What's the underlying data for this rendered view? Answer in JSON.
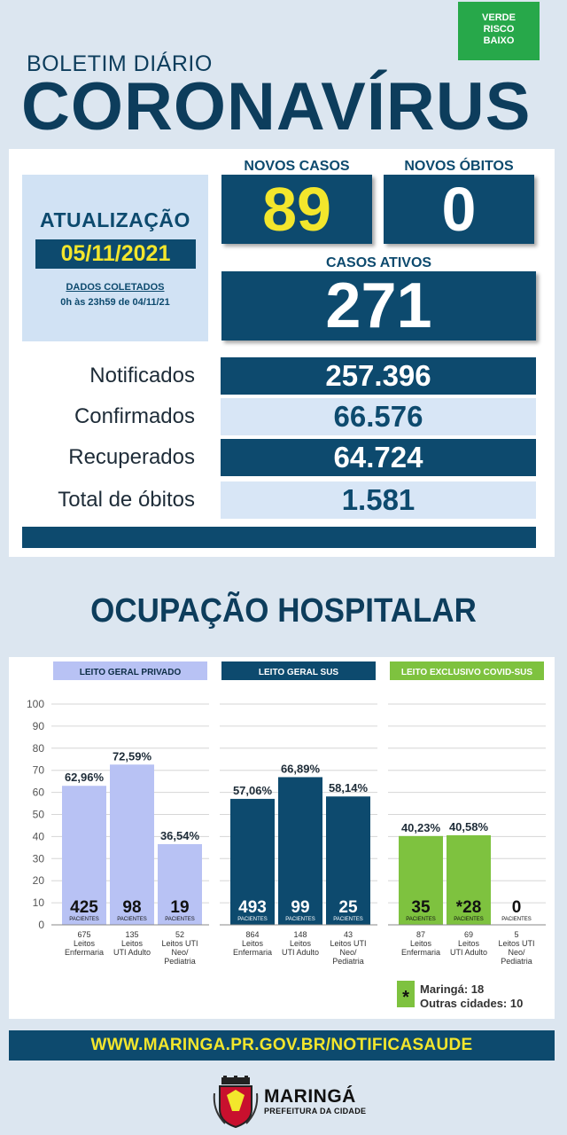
{
  "header": {
    "risk_badge": [
      "VERDE",
      "RISCO",
      "BAIXO"
    ],
    "subtitle": "BOLETIM DIÁRIO",
    "title": "CORONAVÍRUS"
  },
  "update": {
    "title": "ATUALIZAÇÃO",
    "date": "05/11/2021",
    "note_line1": "DADOS COLETADOS",
    "note_line2": "0h às 23h59 de 04/11/21"
  },
  "top_stats": {
    "new_cases_label": "NOVOS CASOS",
    "new_cases": "89",
    "new_deaths_label": "NOVOS ÓBITOS",
    "new_deaths": "0",
    "active_label": "CASOS ATIVOS",
    "active": "271"
  },
  "stats": [
    {
      "label": "Notificados",
      "value": "257.396"
    },
    {
      "label": "Confirmados",
      "value": "66.576"
    },
    {
      "label": "Recuperados",
      "value": "64.724"
    },
    {
      "label": "Total de óbitos",
      "value": "1.581"
    }
  ],
  "hospital_title": "OCUPAÇÃO HOSPITALAR",
  "colors": {
    "private": "#b8c2f4",
    "sus": "#0d4a6e",
    "covid": "#7ec23f",
    "accent_yellow": "#f3e62c"
  },
  "chart_data": {
    "type": "bar",
    "ylim": [
      0,
      100
    ],
    "yticks": [
      "0",
      "10",
      "20",
      "30",
      "40",
      "50",
      "60",
      "70",
      "80",
      "90",
      "100"
    ],
    "patients_label": "PACIENTES",
    "groups": [
      {
        "name": "LEITO GERAL PRIVADO",
        "color": "#b8c2f4",
        "header_text_color": "#0d2d45",
        "bars": [
          {
            "percent": 62.96,
            "percent_label": "62,96%",
            "patients": "425",
            "beds": "675",
            "bed_type": [
              "Leitos",
              "Enfermaria"
            ]
          },
          {
            "percent": 72.59,
            "percent_label": "72,59%",
            "patients": "98",
            "beds": "135",
            "bed_type": [
              "Leitos",
              "UTI Adulto"
            ]
          },
          {
            "percent": 36.54,
            "percent_label": "36,54%",
            "patients": "19",
            "beds": "52",
            "bed_type": [
              "Leitos UTI",
              "Neo/",
              "Pediatria"
            ]
          }
        ]
      },
      {
        "name": "LEITO GERAL SUS",
        "color": "#0d4a6e",
        "header_text_color": "#ffffff",
        "bars": [
          {
            "percent": 57.06,
            "percent_label": "57,06%",
            "patients": "493",
            "beds": "864",
            "bed_type": [
              "Leitos",
              "Enfermaria"
            ]
          },
          {
            "percent": 66.89,
            "percent_label": "66,89%",
            "patients": "99",
            "beds": "148",
            "bed_type": [
              "Leitos",
              "UTI Adulto"
            ]
          },
          {
            "percent": 58.14,
            "percent_label": "58,14%",
            "patients": "25",
            "beds": "43",
            "bed_type": [
              "Leitos UTI",
              "Neo/",
              "Pediatria"
            ]
          }
        ]
      },
      {
        "name": "LEITO EXCLUSIVO COVID-SUS",
        "color": "#7ec23f",
        "header_text_color": "#ffffff",
        "bars": [
          {
            "percent": 40.23,
            "percent_label": "40,23%",
            "patients": "35",
            "beds": "87",
            "bed_type": [
              "Leitos",
              "Enfermaria"
            ]
          },
          {
            "percent": 40.58,
            "percent_label": "40,58%",
            "patients": "*28",
            "beds": "69",
            "bed_type": [
              "Leitos",
              "UTI Adulto"
            ]
          },
          {
            "percent": 0,
            "percent_label": "",
            "patients": "0",
            "beds": "5",
            "bed_type": [
              "Leitos UTI",
              "Neo/",
              "Pediatria"
            ]
          }
        ]
      }
    ],
    "footnote": {
      "symbol": "*",
      "line1": "Maringá: 18",
      "line2": "Outras cidades: 10"
    }
  },
  "footer": {
    "url": "WWW.MARINGA.PR.GOV.BR/NOTIFICASAUDE",
    "city": "MARINGÁ",
    "org": "PREFEITURA DA CIDADE"
  }
}
